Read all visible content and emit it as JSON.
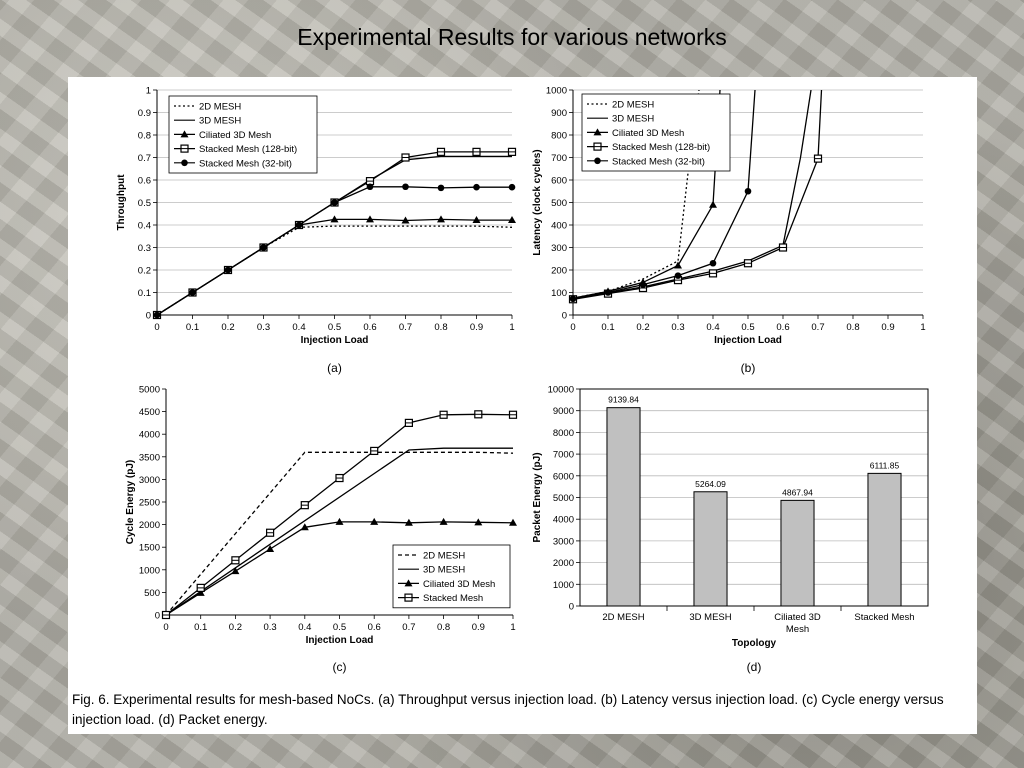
{
  "slide_title": "Experimental Results for various networks",
  "caption": "Fig. 6. Experimental results for mesh-based NoCs. (a) Throughput versus injection load. (b) Latency versus injection load. (c) Cycle energy versus injection load. (d) Packet energy.",
  "chart_data": [
    {
      "id": "a",
      "panel_label": "(a)",
      "type": "line",
      "xlabel": "Injection Load",
      "ylabel": "Throughput",
      "xlim": [
        0,
        1
      ],
      "ylim": [
        0,
        1
      ],
      "xticks": [
        "0",
        "0.1",
        "0.2",
        "0.3",
        "0.4",
        "0.5",
        "0.6",
        "0.7",
        "0.8",
        "0.9",
        "1"
      ],
      "yticks": [
        "0",
        "0.1",
        "0.2",
        "0.3",
        "0.4",
        "0.5",
        "0.6",
        "0.7",
        "0.8",
        "0.9",
        "1"
      ],
      "legend_position": "top-left",
      "grid": "horizontal",
      "series": [
        {
          "name": "2D MESH",
          "style": "dotted",
          "marker": "none",
          "x": [
            0,
            0.1,
            0.2,
            0.3,
            0.4,
            0.5,
            0.6,
            0.7,
            0.8,
            0.9,
            1
          ],
          "y": [
            0,
            0.1,
            0.2,
            0.3,
            0.39,
            0.395,
            0.395,
            0.395,
            0.395,
            0.395,
            0.39
          ]
        },
        {
          "name": "3D MESH",
          "style": "solid",
          "marker": "none",
          "x": [
            0,
            0.1,
            0.2,
            0.3,
            0.4,
            0.5,
            0.6,
            0.7,
            0.8,
            0.9,
            1
          ],
          "y": [
            0,
            0.1,
            0.2,
            0.3,
            0.4,
            0.5,
            0.6,
            0.69,
            0.705,
            0.705,
            0.705
          ]
        },
        {
          "name": "Ciliated 3D Mesh",
          "style": "solid",
          "marker": "triangle",
          "x": [
            0,
            0.1,
            0.2,
            0.3,
            0.4,
            0.5,
            0.6,
            0.7,
            0.8,
            0.9,
            1
          ],
          "y": [
            0,
            0.1,
            0.2,
            0.3,
            0.4,
            0.425,
            0.425,
            0.42,
            0.425,
            0.422,
            0.422
          ]
        },
        {
          "name": "Stacked Mesh (128-bit)",
          "style": "solid",
          "marker": "square",
          "x": [
            0,
            0.1,
            0.2,
            0.3,
            0.4,
            0.5,
            0.6,
            0.7,
            0.8,
            0.9,
            1
          ],
          "y": [
            0,
            0.1,
            0.2,
            0.3,
            0.4,
            0.5,
            0.595,
            0.7,
            0.725,
            0.725,
            0.725
          ]
        },
        {
          "name": "Stacked Mesh (32-bit)",
          "style": "solid",
          "marker": "circle",
          "x": [
            0,
            0.1,
            0.2,
            0.3,
            0.4,
            0.5,
            0.6,
            0.7,
            0.8,
            0.9,
            1
          ],
          "y": [
            0,
            0.1,
            0.2,
            0.3,
            0.4,
            0.5,
            0.57,
            0.57,
            0.565,
            0.568,
            0.568
          ]
        }
      ]
    },
    {
      "id": "b",
      "panel_label": "(b)",
      "type": "line",
      "xlabel": "Injection Load",
      "ylabel": "Latency (clock cycles)",
      "xlim": [
        0,
        1
      ],
      "ylim": [
        0,
        1000
      ],
      "xticks": [
        "0",
        "0.1",
        "0.2",
        "0.3",
        "0.4",
        "0.5",
        "0.6",
        "0.7",
        "0.8",
        "0.9",
        "1"
      ],
      "yticks": [
        "0",
        "100",
        "200",
        "300",
        "400",
        "500",
        "600",
        "700",
        "800",
        "900",
        "1000"
      ],
      "legend_position": "top-left",
      "grid": "horizontal",
      "series": [
        {
          "name": "2D MESH",
          "style": "dotted",
          "marker": "none",
          "x": [
            0,
            0.1,
            0.2,
            0.3,
            0.33,
            0.36
          ],
          "y": [
            75,
            105,
            160,
            240,
            650,
            1000
          ]
        },
        {
          "name": "3D MESH",
          "style": "solid",
          "marker": "none",
          "x": [
            0,
            0.1,
            0.2,
            0.3,
            0.4,
            0.5,
            0.6,
            0.65,
            0.68
          ],
          "y": [
            72,
            98,
            125,
            160,
            195,
            240,
            310,
            700,
            1000
          ]
        },
        {
          "name": "Ciliated 3D Mesh",
          "style": "solid",
          "marker": "triangle",
          "x": [
            0,
            0.1,
            0.2,
            0.3,
            0.4,
            0.42
          ],
          "y": [
            75,
            105,
            145,
            220,
            490,
            1000
          ]
        },
        {
          "name": "Stacked Mesh (128-bit)",
          "style": "solid",
          "marker": "square",
          "x": [
            0,
            0.1,
            0.2,
            0.3,
            0.4,
            0.5,
            0.6,
            0.7,
            0.71
          ],
          "y": [
            70,
            95,
            120,
            155,
            185,
            230,
            300,
            695,
            1000
          ]
        },
        {
          "name": "Stacked Mesh (32-bit)",
          "style": "solid",
          "marker": "circle",
          "x": [
            0,
            0.1,
            0.2,
            0.3,
            0.4,
            0.5,
            0.52
          ],
          "y": [
            72,
            100,
            135,
            175,
            230,
            550,
            1000
          ]
        }
      ]
    },
    {
      "id": "c",
      "panel_label": "(c)",
      "type": "line",
      "xlabel": "Injection Load",
      "ylabel": "Cycle Energy (pJ)",
      "xlim": [
        0,
        1
      ],
      "ylim": [
        0,
        5000
      ],
      "xticks": [
        "0",
        "0.1",
        "0.2",
        "0.3",
        "0.4",
        "0.5",
        "0.6",
        "0.7",
        "0.8",
        "0.9",
        "1"
      ],
      "yticks": [
        "0",
        "500",
        "1000",
        "1500",
        "2000",
        "2500",
        "3000",
        "3500",
        "4000",
        "4500",
        "5000"
      ],
      "legend_position": "bottom-right",
      "grid": "none",
      "series": [
        {
          "name": "2D MESH",
          "style": "dashed",
          "marker": "none",
          "x": [
            0,
            0.4,
            0.5,
            0.6,
            0.7,
            0.8,
            0.9,
            1
          ],
          "y": [
            0,
            3600,
            3600,
            3600,
            3600,
            3600,
            3600,
            3580
          ]
        },
        {
          "name": "3D MESH",
          "style": "solid",
          "marker": "none",
          "x": [
            0,
            0.7,
            0.8,
            0.9,
            1
          ],
          "y": [
            0,
            3650,
            3690,
            3690,
            3690
          ]
        },
        {
          "name": "Ciliated 3D Mesh",
          "style": "solid",
          "marker": "triangle",
          "x": [
            0,
            0.1,
            0.2,
            0.3,
            0.4,
            0.5,
            0.6,
            0.7,
            0.8,
            0.9,
            1
          ],
          "y": [
            0,
            490,
            970,
            1460,
            1940,
            2060,
            2060,
            2040,
            2060,
            2050,
            2040
          ]
        },
        {
          "name": "Stacked Mesh",
          "style": "solid",
          "marker": "square",
          "x": [
            0,
            0.1,
            0.2,
            0.3,
            0.4,
            0.5,
            0.6,
            0.7,
            0.8,
            0.9,
            1
          ],
          "y": [
            0,
            600,
            1210,
            1820,
            2430,
            3030,
            3630,
            4250,
            4430,
            4440,
            4430
          ]
        }
      ]
    },
    {
      "id": "d",
      "panel_label": "(d)",
      "type": "bar",
      "xlabel": "Topology",
      "ylabel": "Packet Energy (pJ)",
      "ylim": [
        0,
        10000
      ],
      "yticks": [
        "0",
        "1000",
        "2000",
        "3000",
        "4000",
        "5000",
        "6000",
        "7000",
        "8000",
        "9000",
        "10000"
      ],
      "categories": [
        "2D MESH",
        "3D MESH",
        "Ciliated 3D Mesh",
        "Stacked Mesh"
      ],
      "values": [
        9139.84,
        5264.09,
        4867.94,
        6111.85
      ],
      "value_labels": [
        "9139.84",
        "5264.09",
        "4867.94",
        "6111.85"
      ],
      "bar_color": "#c0c0c0",
      "grid": "horizontal"
    }
  ]
}
